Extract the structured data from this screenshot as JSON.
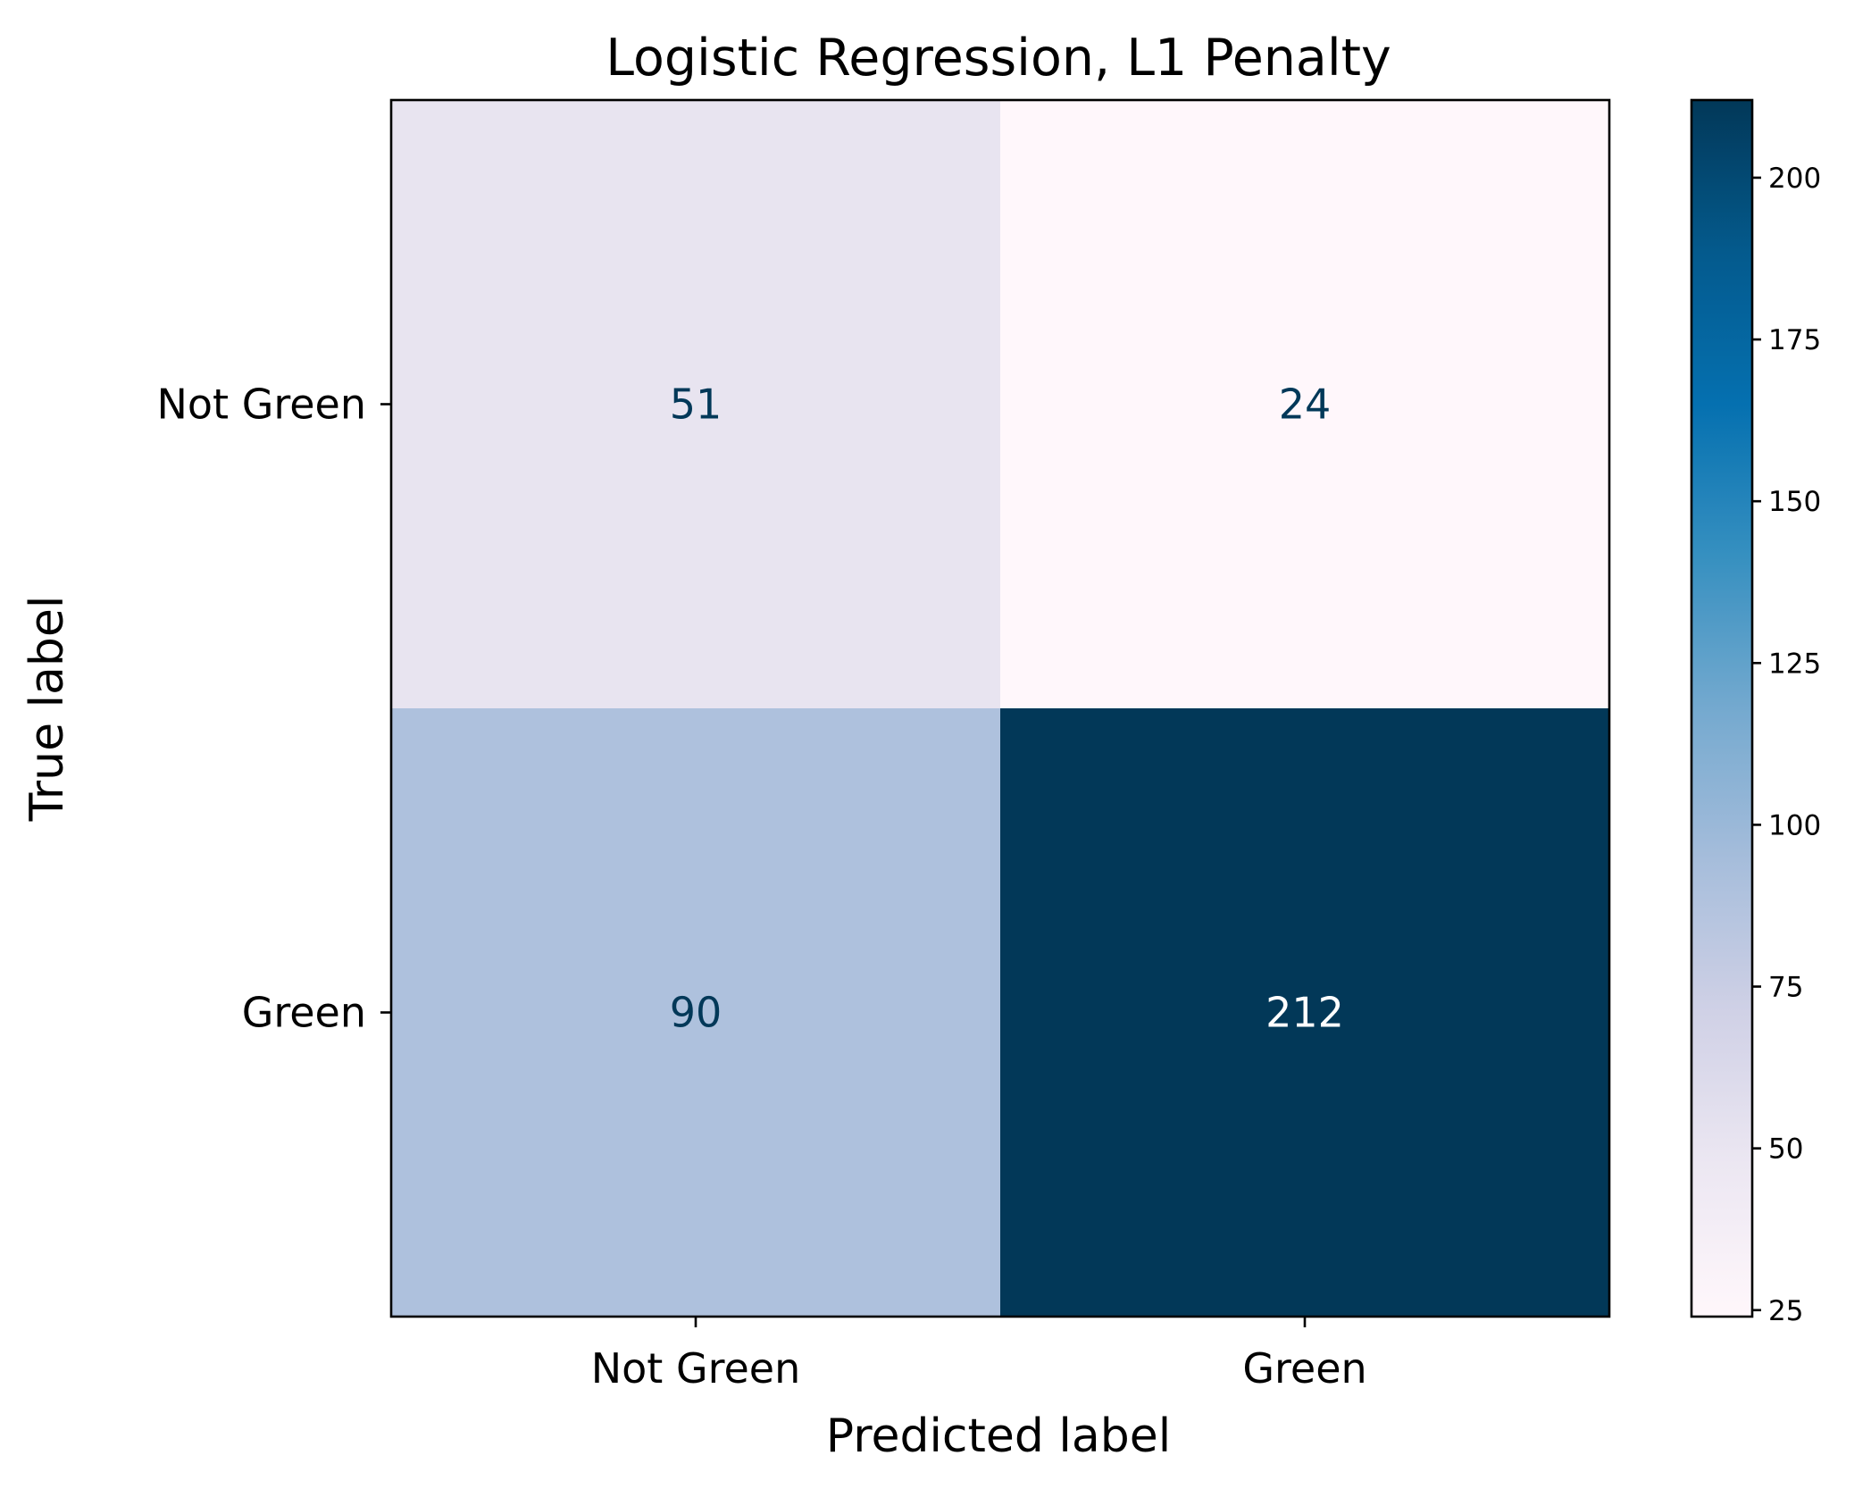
{
  "chart_data": {
    "type": "heatmap",
    "title": "Logistic Regression, L1 Penalty",
    "xlabel": "Predicted label",
    "ylabel": "True label",
    "x_categories": [
      "Not Green",
      "Green"
    ],
    "y_categories": [
      "Not Green",
      "Green"
    ],
    "values": [
      [
        51,
        24
      ],
      [
        90,
        212
      ]
    ],
    "colormap": "PuBu",
    "colorbar": {
      "range": [
        24,
        212
      ],
      "ticks": [
        25,
        50,
        75,
        100,
        125,
        150,
        175,
        200
      ]
    },
    "text_colors": {
      "dark_text": "#023858",
      "light_text": "#ffffff"
    },
    "grid": false
  }
}
